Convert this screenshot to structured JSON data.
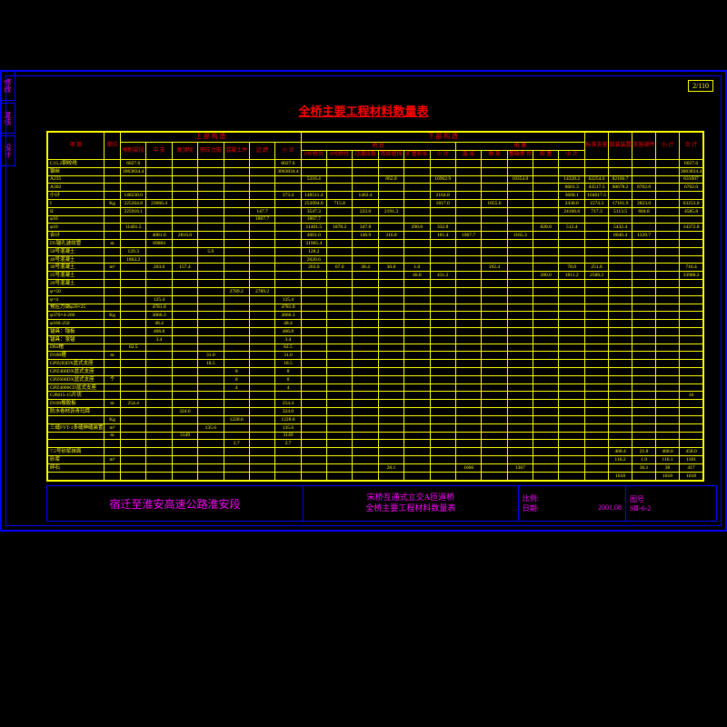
{
  "colors": {
    "background": "#000000",
    "frame": "#0000ff",
    "grid": "#ffff00",
    "text": "#ffff00",
    "header": "#ff0000",
    "titleblock": "#ff00ff"
  },
  "page_number": "2/110",
  "side_tabs": [
    "修改",
    "复核",
    "设计"
  ],
  "title": "全桥主要工程材料数量表",
  "header_groups": {
    "upper": "上 部 构 造",
    "lower": "下 部 构 造",
    "upper_sub": [
      "预制梁段",
      "中 支",
      "墩顶块",
      "预应力筋",
      "混凝土件",
      "边 跨",
      "小 计"
    ],
    "lower_sub_1": "桥 台",
    "lower_sub_2": "桥 墩",
    "lower_cols": [
      "0号桥台",
      "8号桥台",
      "过渡段轨",
      "耳背墙挡",
      "扩基桩长",
      "小 计",
      "盖 梁",
      "墩 身",
      "基础承 台",
      "桩 基",
      "小 计"
    ],
    "right_cols": [
      "标准支座",
      "接装装置",
      "支座部件",
      "小 计",
      "合 计"
    ]
  },
  "row_labels_col": [
    "项 目",
    "钢 筋",
    "混 凝 土",
    "钢材",
    "橡胶支座",
    "",
    "",
    "组合装备预埋件",
    "7.5号砂浆抹面",
    "砂浆",
    "碎石"
  ],
  "rows": [
    {
      "l": "C15.2钢绞线",
      "u": "",
      "v": [
        "6027.6",
        "",
        "",
        "",
        "",
        "",
        "6027.6",
        "",
        "",
        "",
        "",
        "",
        "",
        "",
        "",
        "",
        "",
        "",
        "",
        "",
        "",
        "",
        "6027.6"
      ]
    },
    {
      "l": "钢丝",
      "u": "",
      "v": [
        "3063834.4",
        "",
        "",
        "",
        "",
        "",
        "3063834.4",
        "",
        "",
        "",
        "",
        "",
        "",
        "",
        "",
        "",
        "",
        "",
        "",
        "",
        "",
        "",
        "3063834.4"
      ]
    },
    {
      "l": "A235",
      "u": "",
      "v": [
        "",
        "",
        "",
        "",
        "",
        "",
        "",
        "5316.4",
        "",
        "",
        "862.8",
        "",
        "10962.9",
        "",
        "",
        "18354.0",
        "",
        "14328.2",
        "62254.6",
        "82100.7",
        "",
        "",
        "631007"
      ]
    },
    {
      "l": "A302",
      "u": "",
      "v": [
        "",
        "",
        "",
        "",
        "",
        "",
        "",
        "",
        "",
        "",
        "",
        "",
        "",
        "",
        "",
        "",
        "",
        "6601.3",
        "43517.5",
        "60678.2",
        "8702.0",
        "",
        "6702.0",
        "582563.2"
      ]
    },
    {
      "l": "小计",
      "u": "",
      "v": [
        "148230.0",
        "",
        "",
        "",
        "",
        "",
        "373.4",
        "148511.4",
        "",
        "1462.4",
        "",
        "",
        "2164.8",
        "",
        "",
        "",
        "",
        "3668.1",
        "104617.5",
        "",
        "",
        "",
        ""
      ]
    },
    {
      "l": "I",
      "u": "Kg",
      "v": [
        "225264.8",
        "23066.4",
        "",
        "",
        "",
        "",
        "",
        "252094.0",
        "715.8",
        "",
        "",
        "",
        "1817.0",
        "",
        "1855.6",
        "",
        "",
        "2438.0",
        "1574.3",
        "17161.9",
        "2823.0",
        "",
        "63253.0",
        "2700229.0"
      ]
    },
    {
      "l": "II",
      "u": "",
      "v": [
        "225916.1",
        "",
        "",
        "",
        "",
        "147.7",
        "",
        "3547.3",
        "",
        "222.0",
        "2191.3",
        "",
        "",
        "",
        "",
        "",
        "",
        "24106.6",
        "717.3",
        "5113.5",
        "684.8",
        "",
        "4585.8",
        "44236.7"
      ]
    },
    {
      "l": "φ16",
      "u": "",
      "v": [
        "",
        "",
        "",
        "",
        "",
        "1867.7",
        "",
        "1867.7",
        "",
        "",
        "",
        "",
        "",
        "",
        "",
        "",
        "",
        "",
        "",
        "",
        "",
        "",
        "",
        "1867.7"
      ]
    },
    {
      "l": "φ10",
      "u": "",
      "v": [
        "11401.5",
        "",
        "",
        "",
        "",
        "",
        "",
        "11401.5",
        "1878.2",
        "347.8",
        "",
        "290.8",
        "332.8",
        "",
        "",
        "",
        "828.8",
        "512.4",
        "",
        "5432.4",
        "",
        "",
        "14372.8"
      ]
    },
    {
      "l": "合计",
      "u": "",
      "v": [
        "",
        "4081.0",
        "2816.8",
        "",
        "",
        "",
        "",
        "4061.0",
        "",
        "146.9",
        "316.8",
        "",
        "181.4",
        "1067.7",
        "",
        "1165.3",
        "",
        "",
        "",
        "8040.4",
        "1339.7",
        "",
        "",
        "17843.7"
      ]
    },
    {
      "l": "D5锚孔波纹管",
      "u": "m",
      "v": [
        "",
        "69884",
        "",
        "",
        "",
        "",
        "",
        "31965.4",
        "",
        "",
        "",
        "",
        "",
        "",
        "",
        "",
        "",
        "",
        "",
        "",
        "",
        "",
        "",
        "38881.4"
      ]
    },
    {
      "l": "50号混凝土",
      "u": "",
      "v": [
        "129.3",
        "",
        "",
        "5.9",
        "",
        "",
        "",
        "128.2",
        "",
        "",
        "",
        "",
        "",
        "",
        "",
        "",
        "",
        "",
        "",
        "",
        "",
        "",
        "",
        "2020.6"
      ]
    },
    {
      "l": "40号混凝土",
      "u": "",
      "v": [
        "1863.2",
        "",
        "",
        "",
        "",
        "",
        "",
        "2020.6",
        "",
        "",
        "",
        "",
        "",
        "",
        "",
        "",
        "",
        "",
        "",
        "",
        "",
        "",
        "",
        "2020.6"
      ]
    },
    {
      "l": "30号混凝土",
      "u": "m³",
      "v": [
        "",
        "203.0",
        "157.4",
        "",
        "",
        "",
        "",
        "203.0",
        "67.0",
        "38.4",
        "30.8",
        "1.0",
        "",
        "",
        "192.4",
        "",
        "",
        "78.0",
        "251.8",
        "",
        "",
        "",
        "716.4",
        ""
      ]
    },
    {
      "l": "25号混凝土",
      "u": "",
      "v": [
        "",
        "",
        "",
        "",
        "",
        "",
        "",
        "",
        "",
        "",
        "",
        "46.8",
        "431.2",
        "",
        "",
        "",
        "280.0",
        "1811.2",
        "2588.2",
        "",
        "",
        "",
        "33988.2",
        ""
      ]
    },
    {
      "l": "20号混凝土",
      "u": "",
      "v": [
        "",
        "",
        "",
        "",
        "",
        "",
        "",
        "",
        "",
        "",
        "",
        "",
        "",
        "",
        "",
        "",
        "",
        "",
        "",
        "",
        "",
        "",
        "",
        ""
      ]
    },
    {
      "l": "φ=50",
      "u": "",
      "v": [
        "",
        "",
        "",
        "",
        "2789.2",
        "2789.2",
        "",
        "",
        "",
        "",
        "",
        "",
        "",
        "",
        "",
        "",
        "",
        "",
        "",
        "",
        "",
        "",
        "",
        "27892"
      ]
    },
    {
      "l": "φ=4",
      "u": "",
      "v": [
        "",
        "125.4",
        "",
        "",
        "",
        "",
        "125.4",
        "",
        "",
        "",
        "",
        "",
        "",
        "",
        "",
        "",
        "",
        "",
        "",
        "",
        "",
        "",
        "",
        "1254"
      ]
    },
    {
      "l": "预应力钢φ20×25",
      "u": "",
      "v": [
        "",
        "4781.0",
        "",
        "",
        "",
        "",
        "4781.0",
        "",
        "",
        "",
        "",
        "",
        "",
        "",
        "",
        "",
        "",
        "",
        "",
        "",
        "",
        "",
        "",
        "47810"
      ]
    },
    {
      "l": "φ370×4-260",
      "u": "Kg",
      "v": [
        "",
        "3866.3",
        "",
        "",
        "",
        "",
        "3866.3",
        "",
        "",
        "",
        "",
        "",
        "",
        "",
        "",
        "",
        "",
        "",
        "",
        "",
        "",
        "",
        "",
        "38964"
      ]
    },
    {
      "l": "φ160-250",
      "u": "",
      "v": [
        "",
        "48.4",
        "",
        "",
        "",
        "",
        "48.4",
        "",
        "",
        "",
        "",
        "",
        "",
        "",
        "",
        "",
        "",
        "",
        "",
        "",
        "",
        "",
        "",
        "48.4"
      ]
    },
    {
      "l": "锚具：锚板",
      "u": "",
      "v": [
        "",
        "466.8",
        "",
        "",
        "",
        "",
        "466.8",
        "",
        "",
        "",
        "",
        "",
        "",
        "",
        "",
        "",
        "",
        "",
        "",
        "",
        "",
        "",
        "",
        "466.8"
      ]
    },
    {
      "l": "锚具：张锚",
      "u": "",
      "v": [
        "",
        "3.4",
        "",
        "",
        "",
        "",
        "3.4",
        "",
        "",
        "",
        "",
        "",
        "",
        "",
        "",
        "",
        "",
        "",
        "",
        "",
        "",
        "",
        "",
        "3.4"
      ]
    },
    {
      "l": "D63槽",
      "u": "",
      "v": [
        "62.5",
        "",
        "",
        "",
        "",
        "",
        "62.5",
        "",
        "",
        "",
        "",
        "",
        "",
        "",
        "",
        "",
        "",
        "",
        "",
        "",
        "",
        "",
        "",
        "62.5"
      ]
    },
    {
      "l": "D180槽",
      "u": "m",
      "v": [
        "",
        "",
        "",
        "31.0",
        "",
        "",
        "31.0",
        "",
        "",
        "",
        "",
        "",
        "",
        "",
        "",
        "",
        "",
        "",
        "",
        "",
        "",
        "",
        "",
        "31.0"
      ]
    },
    {
      "l": "GPZ(II)DX盆式支座",
      "u": "",
      "v": [
        "",
        "",
        "",
        "18.5",
        "",
        "",
        "18.5",
        "",
        "",
        "",
        "",
        "",
        "",
        "",
        "",
        "",
        "",
        "",
        "",
        "",
        "",
        "",
        "",
        "18"
      ]
    },
    {
      "l": "GPZ400DX盆式支座",
      "u": "",
      "v": [
        "",
        "",
        "",
        "",
        "8",
        "",
        "8",
        "",
        "",
        "",
        "",
        "",
        "",
        "",
        "",
        "",
        "",
        "",
        "",
        "",
        "",
        "",
        "",
        "8"
      ]
    },
    {
      "l": "GPZ600DX盆式支座",
      "u": "个",
      "v": [
        "",
        "",
        "",
        "",
        "8",
        "",
        "8",
        "",
        "",
        "",
        "",
        "",
        "",
        "",
        "",
        "",
        "",
        "",
        "",
        "",
        "",
        "",
        "",
        "6"
      ]
    },
    {
      "l": "GPZ4000CD盆式支座",
      "u": "",
      "v": [
        "",
        "",
        "",
        "",
        "4",
        "",
        "4",
        "",
        "",
        "",
        "",
        "",
        "",
        "",
        "",
        "",
        "",
        "",
        "",
        "",
        "",
        "",
        "",
        "4"
      ]
    },
    {
      "l": "GJM15-15片状",
      "u": "",
      "v": [
        "",
        "",
        "",
        "",
        "",
        "",
        "",
        "",
        "",
        "",
        "",
        "",
        "",
        "",
        "",
        "",
        "",
        "",
        "",
        "",
        "",
        "",
        "16",
        "16"
      ]
    },
    {
      "l": "D100橡胶板",
      "u": "m",
      "v": [
        "254.4",
        "",
        "",
        "",
        "",
        "",
        "254.4",
        "",
        "",
        "",
        "",
        "",
        "",
        "",
        "",
        "",
        "",
        "",
        "",
        "",
        "",
        "",
        "",
        "254.4"
      ]
    },
    {
      "l": "防水卷材沥青玛蹄",
      "u": "",
      "v": [
        "",
        "",
        "324.0",
        "",
        "",
        "",
        "324.0",
        "",
        "",
        "",
        "",
        "",
        "",
        "",
        "",
        "",
        "",
        "",
        "",
        "",
        "",
        "",
        "",
        "324.0"
      ]
    },
    {
      "l": "",
      "u": "Kg",
      "v": [
        "",
        "",
        "",
        "",
        "1228.6",
        "",
        "1228.6",
        "",
        "",
        "",
        "",
        "",
        "",
        "",
        "",
        "",
        "",
        "",
        "",
        "",
        "",
        "",
        "",
        "1228.6"
      ]
    },
    {
      "l": "三缝FYT-1多缝伸缝装置",
      "u": "m³",
      "v": [
        "",
        "",
        "",
        "135.6",
        "",
        "",
        "135.6",
        "",
        "",
        "",
        "",
        "",
        "",
        "",
        "",
        "",
        "",
        "",
        "",
        "",
        "",
        "",
        "",
        "135.6"
      ]
    },
    {
      "l": "",
      "u": "m",
      "v": [
        "",
        "",
        "3149",
        "",
        "",
        "",
        "3149",
        "",
        "",
        "",
        "",
        "",
        "",
        "",
        "",
        "",
        "",
        "",
        "",
        "",
        "",
        "",
        "",
        "3149"
      ]
    },
    {
      "l": "",
      "u": "",
      "v": [
        "",
        "",
        "",
        "",
        "2.7",
        "",
        "2.7",
        "",
        "",
        "",
        "",
        "",
        "",
        "",
        "",
        "",
        "",
        "",
        "",
        "",
        "",
        "",
        "",
        "2.7"
      ]
    },
    {
      "l": "7.5号砂浆抹面",
      "u": "",
      "v": [
        "",
        "",
        "",
        "",
        "",
        "",
        "",
        "",
        "",
        "",
        "",
        "",
        "",
        "",
        "",
        "",
        "",
        "",
        "",
        "468.4",
        "21.8",
        "468.0",
        "458.0",
        "",
        ""
      ]
    },
    {
      "l": "砂浆",
      "u": "m³",
      "v": [
        "",
        "",
        "",
        "",
        "",
        "",
        "",
        "",
        "",
        "",
        "",
        "",
        "",
        "",
        "",
        "",
        "",
        "",
        "",
        "116.2",
        "1.9",
        "116.1",
        "1181",
        "",
        ""
      ]
    },
    {
      "l": "碎石",
      "u": "",
      "v": [
        "",
        "",
        "",
        "",
        "",
        "",
        "",
        "",
        "",
        "",
        "28.1",
        "",
        "",
        "1666",
        "",
        "1367",
        "",
        "",
        "",
        "",
        "36.1",
        "38",
        "417",
        "17741",
        ""
      ]
    },
    {
      "l": "",
      "u": "",
      "v": [
        "",
        "",
        "",
        "",
        "",
        "",
        "",
        "",
        "",
        "",
        "",
        "",
        "",
        "",
        "",
        "",
        "",
        "",
        "",
        "1618",
        "",
        "1618",
        "1618",
        "",
        ""
      ]
    }
  ],
  "title_block": {
    "project": "宿迁至淮安高速公路淮安段",
    "drawing_line1": "宋桥互通式立交A匝道桥",
    "drawing_line2": "全桥主要工程材料数量表",
    "scale_label": "比例:",
    "scale_value": "",
    "date_label": "日期:",
    "date_value": "2001.08",
    "sheet_label": "图号",
    "sheet_value": "SⅢ-6-2"
  }
}
